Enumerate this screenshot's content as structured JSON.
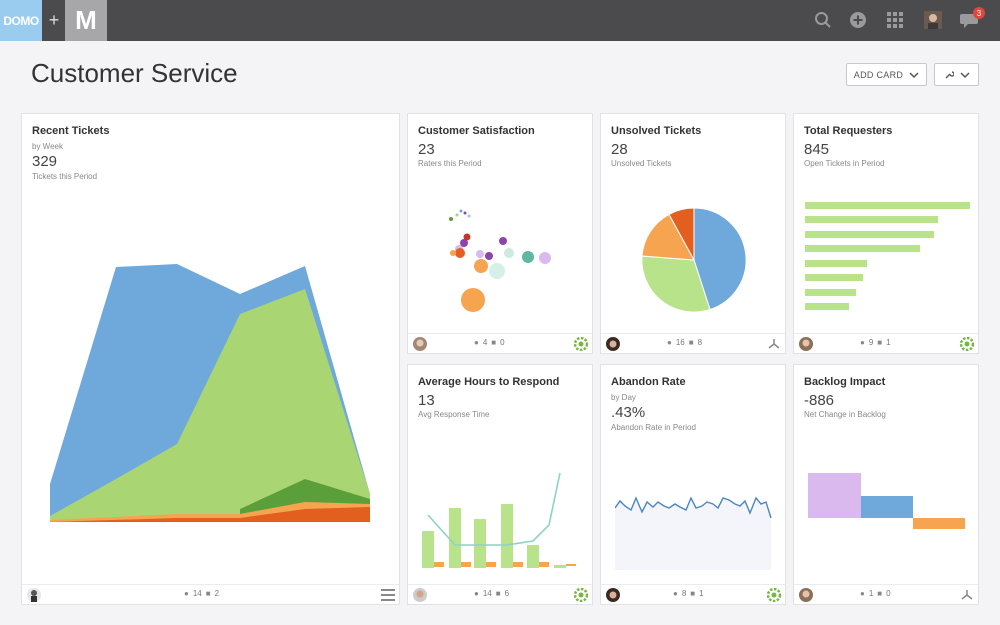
{
  "topbar": {
    "logo_text": "DOMO",
    "plus": "+",
    "app_logo": "M",
    "notification_count": "3",
    "icons": [
      "search-icon",
      "add-circle-icon",
      "apps-grid-icon",
      "user-avatar",
      "chat-icon"
    ]
  },
  "page": {
    "title": "Customer Service",
    "add_card_label": "ADD CARD"
  },
  "cards": {
    "recent_tickets": {
      "title": "Recent Tickets",
      "subtitle": "by Week",
      "value": "329",
      "caption": "Tickets this Period",
      "views": "14",
      "comments": "2"
    },
    "customer_satisfaction": {
      "title": "Customer Satisfaction",
      "value": "23",
      "caption": "Raters this Period",
      "views": "4",
      "comments": "0"
    },
    "unsolved_tickets": {
      "title": "Unsolved Tickets",
      "value": "28",
      "caption": "Unsolved Tickets",
      "views": "16",
      "comments": "8"
    },
    "total_requesters": {
      "title": "Total Requesters",
      "value": "845",
      "caption": "Open Tickets in Period",
      "views": "9",
      "comments": "1"
    },
    "avg_hours": {
      "title": "Average Hours to Respond",
      "value": "13",
      "caption": "Avg Response Time",
      "views": "14",
      "comments": "6"
    },
    "abandon_rate": {
      "title": "Abandon Rate",
      "subtitle": "by Day",
      "value": ".43%",
      "caption": "Abandon Rate in Period",
      "views": "8",
      "comments": "1"
    },
    "backlog_impact": {
      "title": "Backlog Impact",
      "value": "-886",
      "caption": "Net Change in Backlog",
      "views": "1",
      "comments": "0"
    }
  },
  "colors": {
    "blue": "#6fa8da",
    "green": "#a9d672",
    "dark_green": "#5b9f3a",
    "orange": "#f6a450",
    "red_orange": "#e35f1f",
    "purple": "#d9b9ee",
    "teal": "#8fd1c3"
  },
  "chart_data": [
    {
      "type": "area",
      "series": [
        {
          "values": [
            30,
            210,
            212,
            180,
            205,
            0
          ]
        },
        {
          "values": [
            5,
            40,
            80,
            170,
            190,
            20
          ]
        },
        {
          "values": [
            3,
            6,
            8,
            10,
            15,
            10
          ]
        },
        {
          "values": [
            1,
            3,
            4,
            5,
            10,
            8
          ]
        }
      ]
    },
    {
      "type": "scatter",
      "points": [
        {
          "x": 1,
          "y": 1,
          "size": 4,
          "color": "#5b9f3a"
        },
        {
          "x": 2,
          "y": 2,
          "size": 3,
          "color": "#8fd1c3"
        },
        {
          "x": 3,
          "y": 3,
          "size": 5,
          "color": "#8e44ad"
        },
        {
          "x": 4,
          "y": 4,
          "size": 6,
          "color": "#c0392b"
        },
        {
          "x": 5,
          "y": 5,
          "size": 7,
          "color": "#f6a450"
        },
        {
          "x": 6,
          "y": 6,
          "size": 8,
          "color": "#8e44ad"
        },
        {
          "x": 7,
          "y": 7,
          "size": 9,
          "color": "#e35f1f"
        },
        {
          "x": 8,
          "y": 8,
          "size": 12,
          "color": "#f6a450"
        }
      ]
    },
    {
      "type": "pie",
      "slices": [
        {
          "value": 44,
          "color": "#6fa8da"
        },
        {
          "value": 30,
          "color": "#b9e38a"
        },
        {
          "value": 17,
          "color": "#f6a450"
        },
        {
          "value": 9,
          "color": "#e35f1f"
        }
      ]
    },
    {
      "type": "bar",
      "values": [
        165,
        133,
        129,
        115,
        62,
        58,
        51,
        44
      ]
    },
    {
      "type": "bar",
      "series": [
        {
          "type": "bar",
          "values": [
            35,
            60,
            0,
            48,
            62,
            22,
            2,
            1
          ]
        },
        {
          "type": "bar",
          "values": [
            4,
            4,
            4,
            4,
            4,
            4,
            4,
            0
          ]
        },
        {
          "type": "line",
          "values": [
            50,
            22,
            22,
            22,
            25,
            18,
            40,
            100
          ]
        }
      ]
    },
    {
      "type": "line",
      "values": [
        20,
        12,
        10,
        12,
        8,
        16,
        10,
        18,
        12,
        20,
        14,
        16,
        10,
        12,
        20,
        12,
        8,
        12,
        10,
        8,
        14,
        12,
        10,
        12,
        20,
        10,
        8,
        14,
        6,
        14
      ]
    },
    {
      "type": "bar",
      "values": [
        45,
        -20,
        -10
      ]
    }
  ]
}
